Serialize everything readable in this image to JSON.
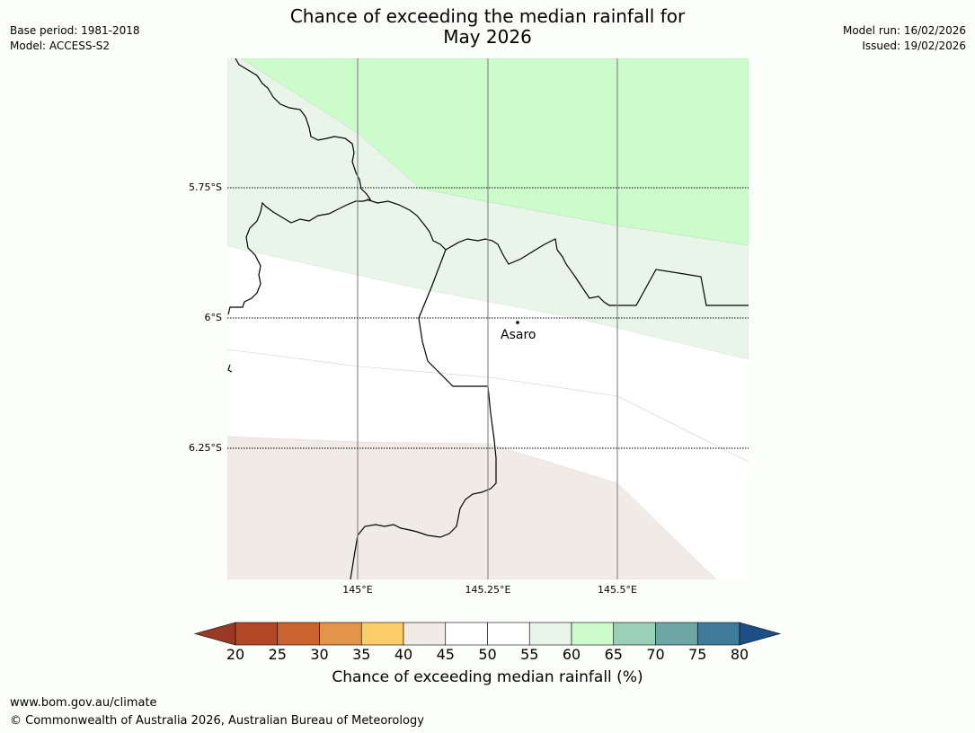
{
  "header": {
    "title_line1": "Chance of exceeding the median rainfall for",
    "title_line2": "May 2026",
    "base_period": "Base period: 1981-2018",
    "model": "Model: ACCESS-S2",
    "model_run": "Model run: 16/02/2026",
    "issued": "Issued: 19/02/2026"
  },
  "map": {
    "lat_labels": [
      "5.75°S",
      "6°S",
      "6.25°S"
    ],
    "lon_labels": [
      "145°E",
      "145.25°E",
      "145.5°E"
    ],
    "place": {
      "name": "Asaro"
    }
  },
  "colorbar": {
    "ticks": [
      "20",
      "25",
      "30",
      "35",
      "40",
      "45",
      "50",
      "55",
      "60",
      "65",
      "70",
      "75",
      "80"
    ],
    "colors": [
      "#b34826",
      "#cb6330",
      "#e2954a",
      "#fdcc6a",
      "#f0ebe6",
      "#ffffff",
      "#ffffff",
      "#eaf5ea",
      "#ccfccc",
      "#9ccfb8",
      "#6ea6a6",
      "#3f7a9b"
    ],
    "under_color": "#9a3a24",
    "over_color": "#1c4f86",
    "title": "Chance of exceeding median rainfall (%)"
  },
  "footer": {
    "url": "www.bom.gov.au/climate",
    "copyright": "© Commonwealth of Australia 2026, Australian Bureau of Meteorology"
  }
}
